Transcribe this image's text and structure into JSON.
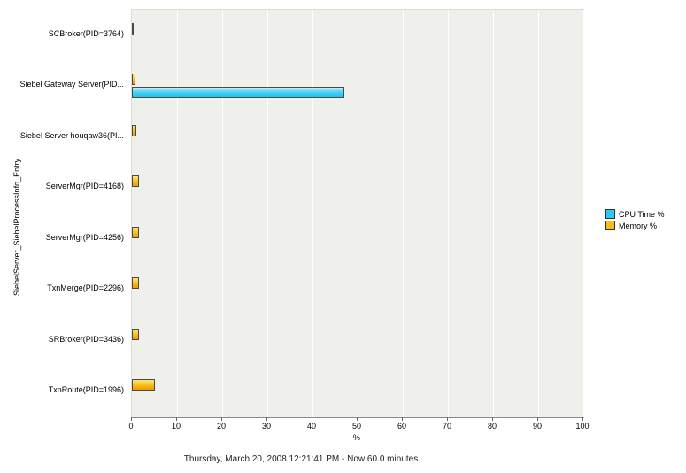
{
  "chart": {
    "y_axis_title": "SiebelServer_SiebelProcessInfo_Entry",
    "x_axis_label": "%",
    "caption": "Thursday, March 20, 2008  12:21:41 PM - Now  60.0 minutes"
  },
  "chart_data": {
    "type": "bar",
    "orientation": "horizontal",
    "title": "",
    "xlabel": "%",
    "ylabel": "SiebelServer_SiebelProcessInfo_Entry",
    "xlim": [
      0,
      100
    ],
    "xticks": [
      0,
      10,
      20,
      30,
      40,
      50,
      60,
      70,
      80,
      90,
      100
    ],
    "grid": true,
    "legend_position": "right",
    "categories": [
      "SCBroker(PID=3764)",
      "Siebel Gateway Server(PID...",
      "Siebel Server houqaw36(PI...",
      "ServerMgr(PID=4168)",
      "ServerMgr(PID=4256)",
      "TxnMerge(PID=2296)",
      "SRBroker(PID=3436)",
      "TxnRoute(PID=1996)"
    ],
    "series": [
      {
        "name": "CPU Time %",
        "color": "#2EC8F0",
        "values": [
          0,
          47,
          0,
          0,
          0,
          0,
          0,
          0
        ]
      },
      {
        "name": "Memory %",
        "color": "#F6BC1C",
        "values": [
          0.4,
          0.7,
          1.0,
          1.5,
          1.5,
          1.5,
          1.5,
          5.0
        ]
      }
    ]
  }
}
